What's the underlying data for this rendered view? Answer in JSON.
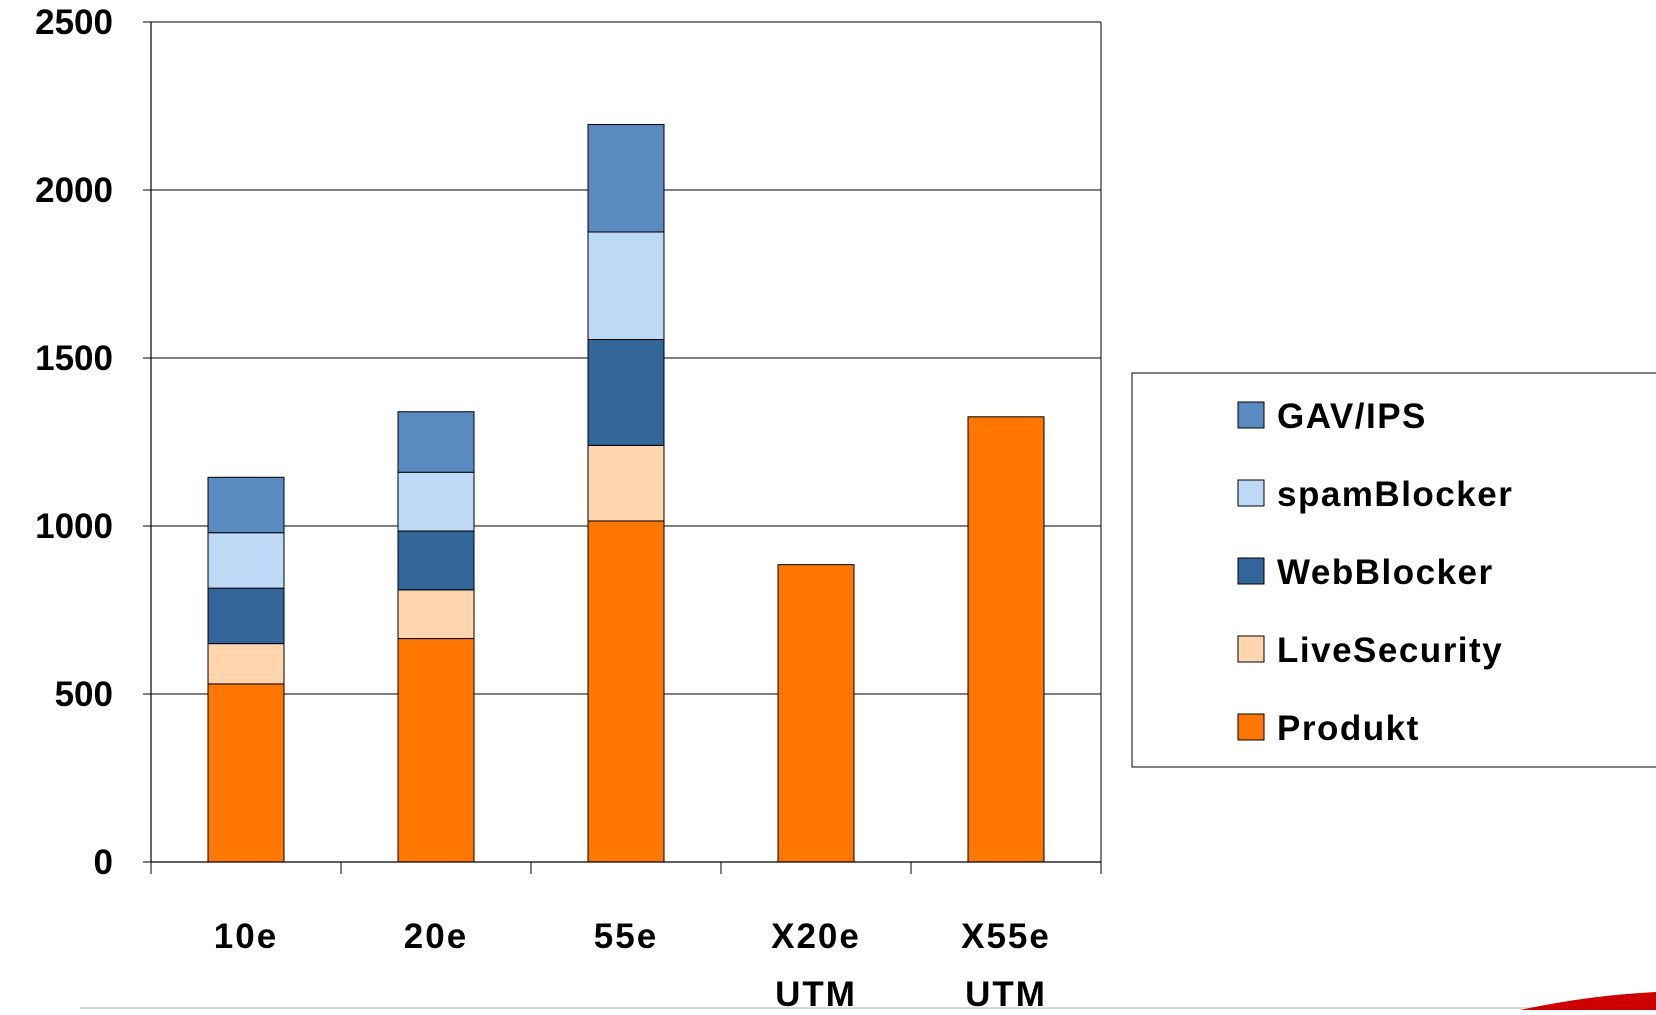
{
  "chart_data": {
    "type": "bar",
    "stacked": true,
    "categories": [
      [
        "10e"
      ],
      [
        "20e"
      ],
      [
        "55e"
      ],
      [
        "X20e",
        "UTM"
      ],
      [
        "X55e",
        "UTM"
      ]
    ],
    "series": [
      {
        "name": "Produkt",
        "color": "#FF7700",
        "values": [
          530,
          665,
          1015,
          885,
          1325
        ]
      },
      {
        "name": "LiveSecurity",
        "color": "#FFD5AE",
        "values": [
          120,
          145,
          225,
          0,
          0
        ]
      },
      {
        "name": "WebBlocker",
        "color": "#336699",
        "values": [
          165,
          175,
          315,
          0,
          0
        ]
      },
      {
        "name": "spamBlocker",
        "color": "#BDD9F5",
        "values": [
          165,
          175,
          320,
          0,
          0
        ]
      },
      {
        "name": "GAV/IPS",
        "color": "#5B8AC1",
        "values": [
          165,
          180,
          320,
          0,
          0
        ]
      }
    ],
    "yticks": [
      "0",
      "500",
      "1000",
      "1500",
      "2000",
      "2500"
    ],
    "ylim": [
      0,
      2500
    ],
    "grid": true,
    "legend": {
      "position": "right",
      "order": [
        "GAV/IPS",
        "spamBlocker",
        "WebBlocker",
        "LiveSecurity",
        "Produkt"
      ]
    },
    "title": "",
    "xlabel": "",
    "ylabel": ""
  },
  "decor": {
    "bottom_bar_color": "#CC0000"
  }
}
